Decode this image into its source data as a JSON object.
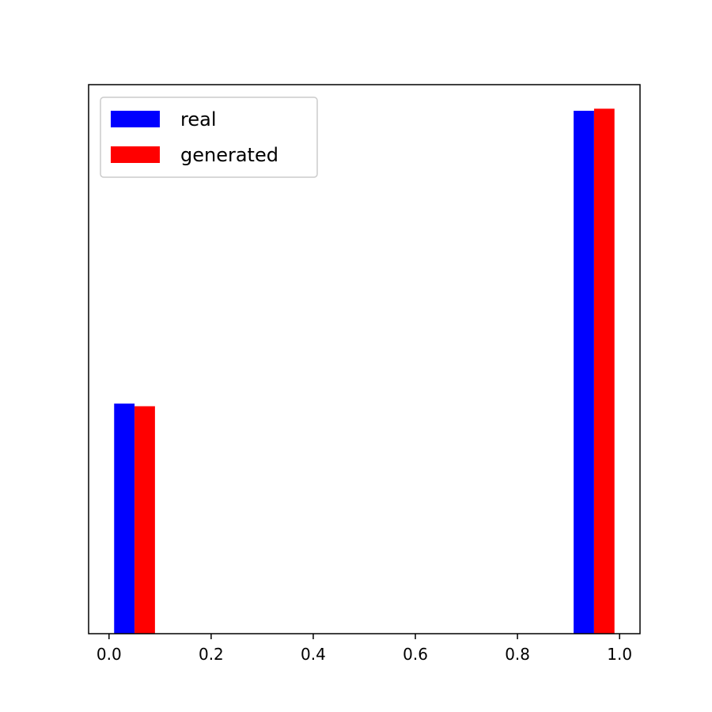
{
  "chart_data": {
    "type": "bar",
    "x_range": [
      -0.04,
      1.04
    ],
    "y_range": [
      0,
      1.05
    ],
    "y_ticks_visible": false,
    "grid": false,
    "legend_position": "top-left",
    "bar_width": 0.04,
    "series": [
      {
        "name": "real",
        "color": "#0000ff",
        "points": [
          {
            "x": 0.01,
            "value": 0.44
          },
          {
            "x": 0.91,
            "value": 1.0
          }
        ]
      },
      {
        "name": "generated",
        "color": "#ff0000",
        "points": [
          {
            "x": 0.05,
            "value": 0.435
          },
          {
            "x": 0.95,
            "value": 1.004
          }
        ]
      }
    ],
    "x_ticks": [
      {
        "value": 0.0,
        "label": "0.0"
      },
      {
        "value": 0.2,
        "label": "0.2"
      },
      {
        "value": 0.4,
        "label": "0.4"
      },
      {
        "value": 0.6,
        "label": "0.6"
      },
      {
        "value": 0.8,
        "label": "0.8"
      },
      {
        "value": 1.0,
        "label": "1.0"
      }
    ]
  }
}
